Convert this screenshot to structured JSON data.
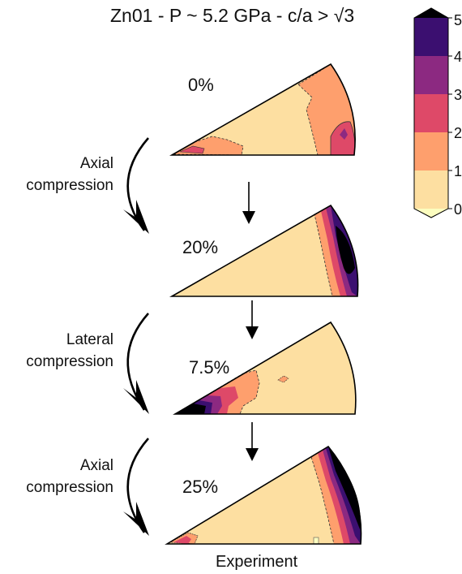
{
  "title": "Zn01 - P ~ 5.2 GPa - c/a > √3",
  "footer": "Experiment",
  "side_labels": [
    "Axial\ncompression",
    "Lateral\ncompression",
    "Axial\ncompression"
  ],
  "chart_data": [
    {
      "type": "inverse-pole-figure",
      "strain_label": "0%"
    },
    {
      "type": "inverse-pole-figure",
      "strain_label": "20%"
    },
    {
      "type": "inverse-pole-figure",
      "strain_label": "7.5%"
    },
    {
      "type": "inverse-pole-figure",
      "strain_label": "25%"
    }
  ],
  "colorbar": {
    "ticks": [
      "0",
      "1",
      "2",
      "3",
      "4",
      "5"
    ],
    "colors": [
      "#fddfa1",
      "#fe9f6d",
      "#de4968",
      "#8c2981",
      "#3b0f70"
    ],
    "extend_min": "#fcfdbf",
    "extend_max": "#000004"
  }
}
